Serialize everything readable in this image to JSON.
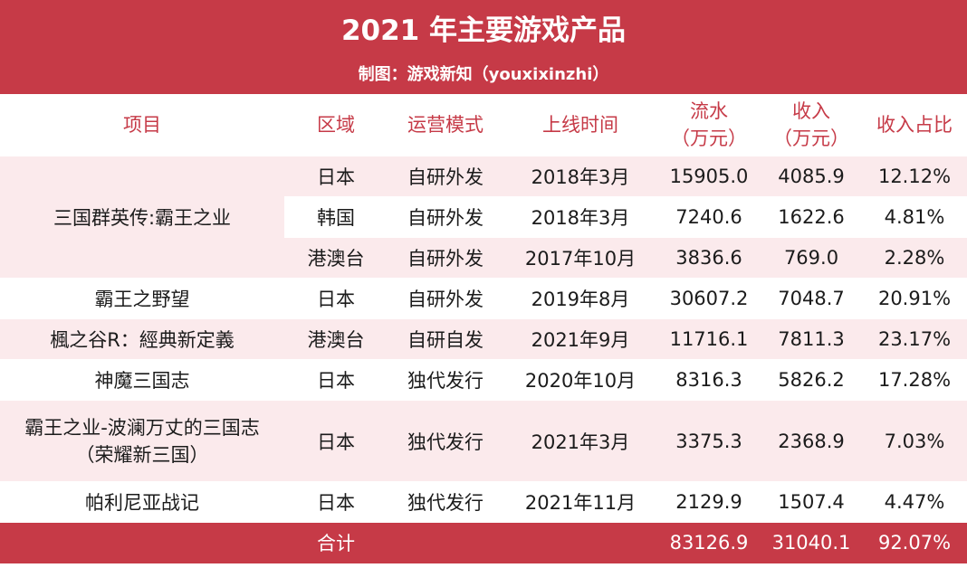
{
  "title": "2021 年主要游戏产品",
  "subtitle": "制图：游戏新知（youxixinzhi）",
  "colors": {
    "accent": "#C63A47",
    "band": "#FBEAEC"
  },
  "headers": {
    "item": "项目",
    "region": "区域",
    "mode": "运营模式",
    "launch": "上线时间",
    "flow_l1": "流水",
    "flow_l2": "（万元）",
    "rev_l1": "收入",
    "rev_l2": "（万元）",
    "share": "收入占比"
  },
  "rows": [
    {
      "item": "三国群英传:霸王之业",
      "region": "日本",
      "mode": "自研外发",
      "launch": "2018年3月",
      "flow": "15905.0",
      "revenue": "4085.9",
      "share": "12.12%"
    },
    {
      "item": "",
      "region": "韩国",
      "mode": "自研外发",
      "launch": "2018年3月",
      "flow": "7240.6",
      "revenue": "1622.6",
      "share": "4.81%"
    },
    {
      "item": "",
      "region": "港澳台",
      "mode": "自研外发",
      "launch": "2017年10月",
      "flow": "3836.6",
      "revenue": "769.0",
      "share": "2.28%"
    },
    {
      "item": "霸王之野望",
      "region": "日本",
      "mode": "自研外发",
      "launch": "2019年8月",
      "flow": "30607.2",
      "revenue": "7048.7",
      "share": "20.91%"
    },
    {
      "item": "楓之谷R：經典新定義",
      "region": "港澳台",
      "mode": "自研自发",
      "launch": "2021年9月",
      "flow": "11716.1",
      "revenue": "7811.3",
      "share": "23.17%"
    },
    {
      "item": "神魔三国志",
      "region": "日本",
      "mode": "独代发行",
      "launch": "2020年10月",
      "flow": "8316.3",
      "revenue": "5826.2",
      "share": "17.28%"
    },
    {
      "item_l1": "霸王之业-波澜万丈的三国志",
      "item_l2": "（荣耀新三国）",
      "region": "日本",
      "mode": "独代发行",
      "launch": "2021年3月",
      "flow": "3375.3",
      "revenue": "2368.9",
      "share": "7.03%"
    },
    {
      "item": "帕利尼亚战记",
      "region": "日本",
      "mode": "独代发行",
      "launch": "2021年11月",
      "flow": "2129.9",
      "revenue": "1507.4",
      "share": "4.47%"
    }
  ],
  "total": {
    "label": "合计",
    "flow": "83126.9",
    "revenue": "31040.1",
    "share": "92.07%"
  }
}
